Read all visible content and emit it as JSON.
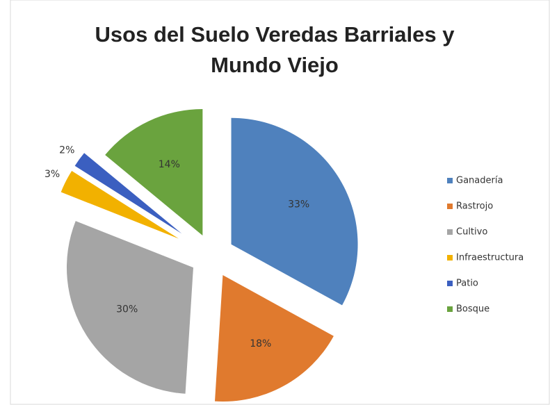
{
  "chart_data": {
    "type": "pie",
    "title": "Usos del Suelo Veredas Barriales y Mundo Viejo",
    "categories": [
      "Ganadería",
      "Rastrojo",
      "Cultivo",
      "Infraestructura",
      "Patio",
      "Bosque"
    ],
    "values": [
      33,
      18,
      30,
      3,
      2,
      14
    ],
    "value_labels": [
      "33%",
      "18%",
      "30%",
      "3%",
      "2%",
      "14%"
    ],
    "colors": [
      "#4f81bd",
      "#e07a2e",
      "#a5a5a5",
      "#f2b100",
      "#3b5fc0",
      "#6aa33e"
    ],
    "legend": "right"
  }
}
